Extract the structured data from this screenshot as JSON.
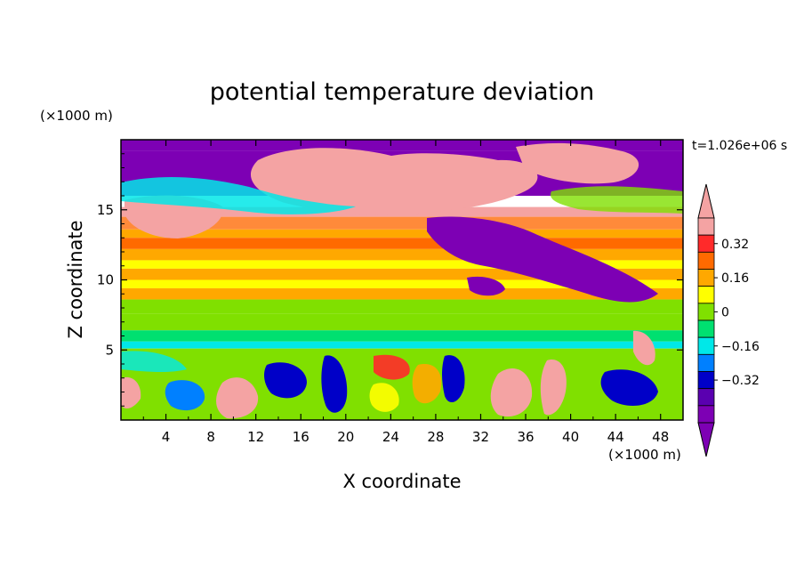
{
  "chart_data": {
    "type": "heatmap",
    "title": "potential temperature deviation",
    "xlabel": "X coordinate",
    "ylabel": "Z coordinate",
    "x_unit": "(×1000 m)",
    "y_unit": "(×1000 m)",
    "time_label": "t=1.026e+06 s",
    "xlim": [
      0,
      50
    ],
    "ylim": [
      0,
      20
    ],
    "x_ticks": [
      "4",
      "8",
      "12",
      "16",
      "20",
      "24",
      "28",
      "32",
      "36",
      "40",
      "44",
      "48"
    ],
    "y_ticks": [
      "5",
      "10",
      "15"
    ],
    "colorbar": {
      "labels": [
        "0.32",
        "0.16",
        "0",
        "−0.16",
        "−0.32"
      ],
      "levels": [
        0.32,
        0.16,
        0,
        -0.16,
        -0.32
      ],
      "colors": [
        "#f4a3a3",
        "#ff2a2a",
        "#ff6a00",
        "#ffa800",
        "#ffff00",
        "#80e000",
        "#00e070",
        "#00e8e8",
        "#0080ff",
        "#0000c8",
        "#5a00b0",
        "#7d00b4"
      ],
      "over_color": "#f4a3a3",
      "under_color": "#7d00b4"
    },
    "bands": [
      {
        "z_bottom": 19.2,
        "z_top": 20.0,
        "color": "#7d00b4"
      },
      {
        "z_bottom": 16.0,
        "z_top": 19.2,
        "color": "#7d00b4"
      },
      {
        "z_bottom": 14.5,
        "z_top": 15.2,
        "color": "#f4a3a3"
      },
      {
        "z_bottom": 13.6,
        "z_top": 14.5,
        "color": "#ff8a3a"
      },
      {
        "z_bottom": 13.0,
        "z_top": 13.6,
        "color": "#ffa800"
      },
      {
        "z_bottom": 12.2,
        "z_top": 13.0,
        "color": "#ff6a00"
      },
      {
        "z_bottom": 11.4,
        "z_top": 12.2,
        "color": "#ffa800"
      },
      {
        "z_bottom": 10.8,
        "z_top": 11.4,
        "color": "#ffff00"
      },
      {
        "z_bottom": 10.0,
        "z_top": 10.8,
        "color": "#ffa800"
      },
      {
        "z_bottom": 9.4,
        "z_top": 10.0,
        "color": "#ffff00"
      },
      {
        "z_bottom": 8.6,
        "z_top": 9.4,
        "color": "#ffa800"
      },
      {
        "z_bottom": 7.6,
        "z_top": 8.6,
        "color": "#80e000"
      },
      {
        "z_bottom": 6.4,
        "z_top": 7.6,
        "color": "#80e000"
      },
      {
        "z_bottom": 5.6,
        "z_top": 6.4,
        "color": "#00e070"
      },
      {
        "z_bottom": 5.1,
        "z_top": 5.6,
        "color": "#00e8e8"
      },
      {
        "z_bottom": 0.0,
        "z_top": 5.1,
        "color": "#80e000"
      }
    ]
  }
}
